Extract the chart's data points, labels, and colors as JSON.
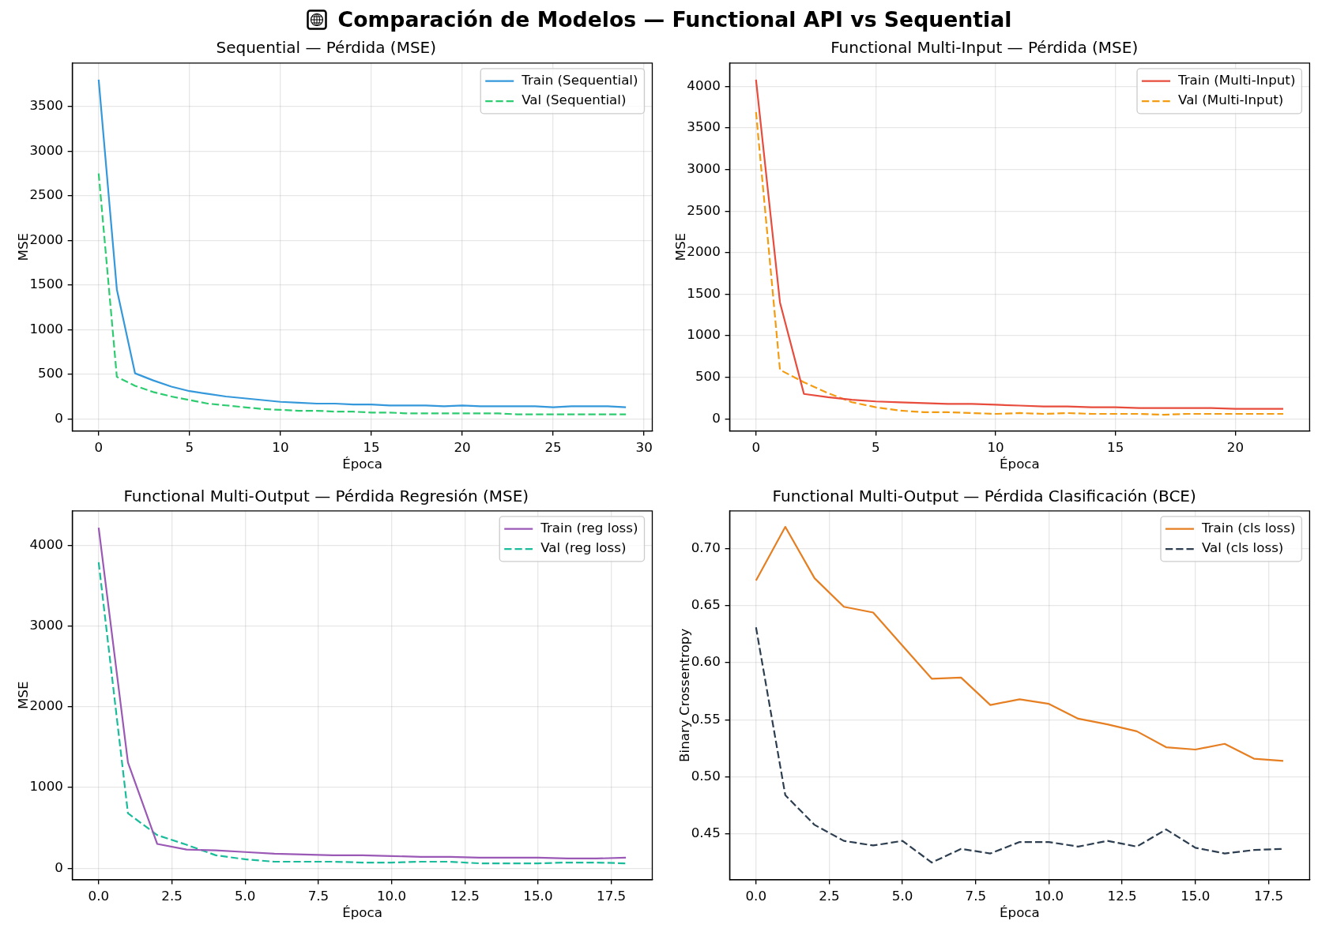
{
  "chart_data": [
    {
      "type": "other",
      "title": "Comparación de Modelos — Functional API vs Sequential"
    },
    {
      "type": "line",
      "title": "Sequential — Pérdida (MSE)",
      "xlabel": "Época",
      "ylabel": "MSE",
      "x": [
        0,
        1,
        2,
        3,
        4,
        5,
        6,
        7,
        8,
        9,
        10,
        11,
        12,
        13,
        14,
        15,
        16,
        17,
        18,
        19,
        20,
        21,
        22,
        23,
        24,
        25,
        26,
        27,
        28,
        29
      ],
      "series": [
        {
          "name": "Train (Sequential)",
          "color": "#3498db",
          "line_style": "solid",
          "values": [
            3800,
            1450,
            510,
            430,
            360,
            310,
            280,
            250,
            230,
            210,
            190,
            180,
            170,
            170,
            160,
            160,
            150,
            150,
            150,
            140,
            150,
            140,
            140,
            140,
            140,
            130,
            140,
            140,
            140,
            130
          ]
        },
        {
          "name": "Val (Sequential)",
          "color": "#2ecc71",
          "line_style": "dashed",
          "values": [
            2750,
            470,
            370,
            300,
            250,
            210,
            170,
            150,
            130,
            110,
            100,
            90,
            90,
            80,
            80,
            70,
            70,
            60,
            60,
            60,
            60,
            60,
            60,
            50,
            50,
            50,
            50,
            50,
            50,
            50
          ]
        }
      ],
      "xlim": [
        -1.45,
        30.45
      ],
      "ylim": [
        -137,
        3987
      ],
      "xticks": [
        0,
        5,
        10,
        15,
        20,
        25,
        30
      ],
      "yticks": [
        0,
        500,
        1000,
        1500,
        2000,
        2500,
        3000,
        3500
      ],
      "grid": true,
      "legend": "top right"
    },
    {
      "type": "line",
      "title": "Functional Multi-Input — Pérdida (MSE)",
      "xlabel": "Época",
      "ylabel": "MSE",
      "x": [
        0,
        1,
        2,
        3,
        4,
        5,
        6,
        7,
        8,
        9,
        10,
        11,
        12,
        13,
        14,
        15,
        16,
        17,
        18,
        19,
        20,
        21,
        22
      ],
      "series": [
        {
          "name": "Train (Multi-Input)",
          "color": "#e74c3c",
          "line_style": "solid",
          "values": [
            4080,
            1400,
            300,
            260,
            230,
            210,
            200,
            190,
            180,
            180,
            170,
            160,
            150,
            150,
            140,
            140,
            130,
            130,
            130,
            130,
            120,
            120,
            120
          ]
        },
        {
          "name": "Val (Multi-Input)",
          "color": "#f39c12",
          "line_style": "dashed",
          "values": [
            3690,
            590,
            440,
            310,
            200,
            140,
            100,
            80,
            80,
            70,
            60,
            70,
            60,
            70,
            60,
            60,
            60,
            50,
            60,
            60,
            60,
            60,
            60
          ]
        }
      ],
      "xlim": [
        -1.1,
        23.1
      ],
      "ylim": [
        -146,
        4280
      ],
      "xticks": [
        0,
        5,
        10,
        15,
        20
      ],
      "yticks": [
        0,
        500,
        1000,
        1500,
        2000,
        2500,
        3000,
        3500,
        4000
      ],
      "grid": true,
      "legend": "top right"
    },
    {
      "type": "line",
      "title": "Functional Multi-Output — Pérdida Regresión (MSE)",
      "xlabel": "Época",
      "ylabel": "MSE",
      "x": [
        0,
        1,
        2,
        3,
        4,
        5,
        6,
        7,
        8,
        9,
        10,
        11,
        12,
        13,
        14,
        15,
        16,
        17,
        18
      ],
      "series": [
        {
          "name": "Train (reg loss)",
          "color": "#9b59b6",
          "line_style": "solid",
          "values": [
            4220,
            1310,
            300,
            230,
            220,
            200,
            180,
            170,
            160,
            160,
            150,
            140,
            140,
            130,
            130,
            130,
            120,
            120,
            130
          ]
        },
        {
          "name": "Val (reg loss)",
          "color": "#1abc9c",
          "line_style": "dashed",
          "values": [
            3790,
            680,
            410,
            290,
            160,
            110,
            80,
            80,
            80,
            70,
            70,
            80,
            80,
            60,
            60,
            60,
            70,
            70,
            60
          ]
        }
      ],
      "xlim": [
        -0.9,
        18.9
      ],
      "ylim": [
        -143,
        4428
      ],
      "xticks": [
        {
          "value": 0,
          "label": "0.0"
        },
        2.5,
        {
          "value": 5,
          "label": "5.0"
        },
        7.5,
        {
          "value": 10,
          "label": "10.0"
        },
        12.5,
        {
          "value": 15,
          "label": "15.0"
        },
        17.5
      ],
      "yticks": [
        0,
        1000,
        2000,
        3000,
        4000
      ],
      "grid": true,
      "legend": "top right"
    },
    {
      "type": "line",
      "title": "Functional Multi-Output — Pérdida Clasificación (BCE)",
      "xlabel": "Época",
      "ylabel": "Binary Crossentropy",
      "x": [
        0,
        1,
        2,
        3,
        4,
        5,
        6,
        7,
        8,
        9,
        10,
        11,
        12,
        13,
        14,
        15,
        16,
        17,
        18
      ],
      "series": [
        {
          "name": "Train (cls loss)",
          "color": "#e67e22",
          "line_style": "solid",
          "values": [
            0.672,
            0.719,
            0.674,
            0.649,
            0.644,
            0.615,
            0.586,
            0.587,
            0.563,
            0.568,
            0.564,
            0.551,
            0.546,
            0.54,
            0.526,
            0.524,
            0.529,
            0.516,
            0.514
          ]
        },
        {
          "name": "Val (cls loss)",
          "color": "#2c3e50",
          "line_style": "dashed",
          "values": [
            0.631,
            0.484,
            0.458,
            0.444,
            0.44,
            0.444,
            0.425,
            0.437,
            0.433,
            0.443,
            0.443,
            0.439,
            0.444,
            0.439,
            0.454,
            0.438,
            0.433,
            0.436,
            0.437
          ]
        }
      ],
      "xlim": [
        -0.9,
        18.9
      ],
      "ylim": [
        0.41,
        0.733
      ],
      "xticks": [
        {
          "value": 0,
          "label": "0.0"
        },
        2.5,
        {
          "value": 5,
          "label": "5.0"
        },
        7.5,
        {
          "value": 10,
          "label": "10.0"
        },
        12.5,
        {
          "value": 15,
          "label": "15.0"
        },
        17.5
      ],
      "yticks": [
        0.45,
        {
          "value": 0.5,
          "label": "0.50"
        },
        0.55,
        {
          "value": 0.6,
          "label": "0.60"
        },
        0.65,
        {
          "value": 0.7,
          "label": "0.70"
        }
      ],
      "grid": true,
      "legend": "top right"
    }
  ]
}
